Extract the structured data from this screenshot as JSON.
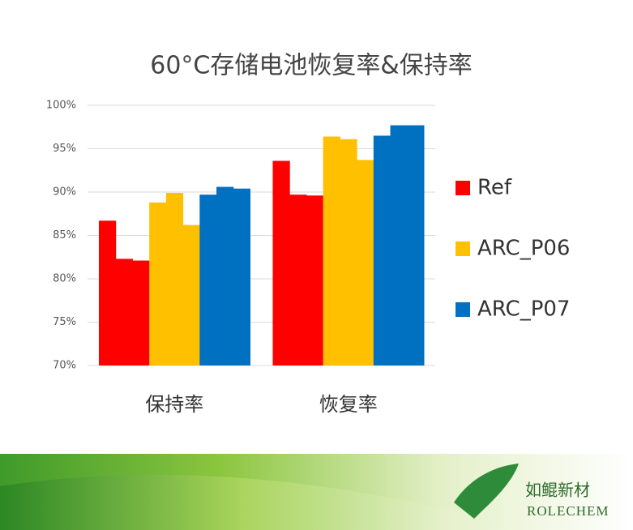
{
  "chart_data": {
    "type": "bar",
    "title": "60°C存储电池恢复率&保持率",
    "categories": [
      "保持率",
      "恢复率"
    ],
    "series": [
      {
        "name": "Ref",
        "color": "#ff0000",
        "values": [
          [
            86.7,
            82.3,
            82.1
          ],
          [
            93.6,
            89.7,
            89.6
          ]
        ]
      },
      {
        "name": "ARC_P06",
        "color": "#ffc000",
        "values": [
          [
            88.8,
            89.9,
            86.2
          ],
          [
            96.4,
            96.1,
            93.7
          ]
        ]
      },
      {
        "name": "ARC_P07",
        "color": "#0070c0",
        "values": [
          [
            89.7,
            90.6,
            90.4
          ],
          [
            96.5,
            97.7,
            97.7
          ]
        ]
      }
    ],
    "ylim": [
      70,
      100
    ],
    "yticks": [
      {
        "value": 70,
        "label": "70%"
      },
      {
        "value": 75,
        "label": "75%"
      },
      {
        "value": 80,
        "label": "80%"
      },
      {
        "value": 85,
        "label": "85%"
      },
      {
        "value": 90,
        "label": "90%"
      },
      {
        "value": 95,
        "label": "95%"
      },
      {
        "value": 100,
        "label": "100%"
      }
    ],
    "grid": true,
    "legend": "right"
  },
  "logo": {
    "name": "如鲲新材",
    "brand": "ROLECHEM"
  }
}
